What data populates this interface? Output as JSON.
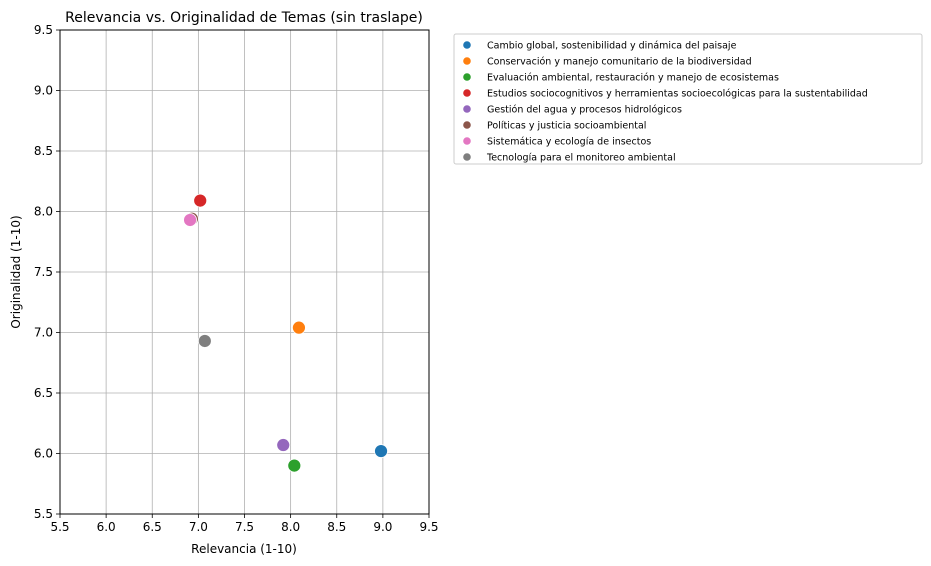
{
  "chart_data": {
    "type": "scatter",
    "title": "Relevancia vs. Originalidad de Temas (sin traslape)",
    "xlabel": "Relevancia (1-10)",
    "ylabel": "Originalidad (1-10)",
    "xlim": [
      5.5,
      9.5
    ],
    "ylim": [
      5.5,
      9.5
    ],
    "xticks": [
      "5.5",
      "6.0",
      "6.5",
      "7.0",
      "7.5",
      "8.0",
      "8.5",
      "9.0",
      "9.5"
    ],
    "yticks": [
      "5.5",
      "6.0",
      "6.5",
      "7.0",
      "7.5",
      "8.0",
      "8.5",
      "9.0",
      "9.5"
    ],
    "grid": true,
    "legend_position": "outside upper right",
    "series": [
      {
        "name": "Cambio global, sostenibilidad y dinámica del paisaje",
        "color": "#1f77b4",
        "x": 8.98,
        "y": 6.02
      },
      {
        "name": "Conservación y manejo comunitario de la biodiversidad",
        "color": "#ff7f0e",
        "x": 8.09,
        "y": 7.04
      },
      {
        "name": "Evaluación ambiental, restauración y manejo de ecosistemas",
        "color": "#2ca02c",
        "x": 8.04,
        "y": 5.9
      },
      {
        "name": "Estudios sociocognitivos y herramientas socioecológicas para la sustentabilidad",
        "color": "#d62728",
        "x": 7.02,
        "y": 8.09
      },
      {
        "name": "Gestión del agua y procesos hidrológicos",
        "color": "#9467bd",
        "x": 7.92,
        "y": 6.07
      },
      {
        "name": "Políticas y justicia socioambiental",
        "color": "#8c564b",
        "x": 6.93,
        "y": 7.94
      },
      {
        "name": "Sistemática y ecología de insectos",
        "color": "#e377c2",
        "x": 6.91,
        "y": 7.93
      },
      {
        "name": "Tecnología para el monitoreo ambiental",
        "color": "#7f7f7f",
        "x": 7.07,
        "y": 6.93
      }
    ]
  }
}
